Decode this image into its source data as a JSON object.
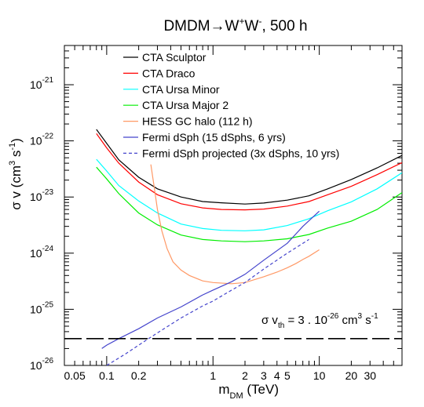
{
  "chart_data": {
    "type": "line",
    "title": "DMDM→W⁺W⁻, 500 h",
    "title_parts": {
      "prefix": "DMDM",
      "arrow": "→",
      "w1": "W",
      "sup1": "+",
      "w2": "W",
      "sup2": "-",
      "suffix": ", 500 h"
    },
    "xlabel": {
      "main": "m",
      "sub": "DM",
      "unit": " (TeV)"
    },
    "ylabel": {
      "main": "σ v (cm",
      "sup1": "3",
      "mid": " s",
      "sup2": "-1",
      "end": ")"
    },
    "x_scale": "log",
    "y_scale": "log",
    "xlim": [
      0.04,
      60
    ],
    "ylim": [
      1e-26,
      5e-21
    ],
    "x_ticks": [
      {
        "value": 0.05,
        "label": "0.05"
      },
      {
        "value": 0.1,
        "label": "0.1"
      },
      {
        "value": 0.2,
        "label": "0.2"
      },
      {
        "value": 1,
        "label": "1"
      },
      {
        "value": 2,
        "label": "2"
      },
      {
        "value": 3,
        "label": "3"
      },
      {
        "value": 4,
        "label": "4"
      },
      {
        "value": 5,
        "label": "5"
      },
      {
        "value": 10,
        "label": "10"
      },
      {
        "value": 20,
        "label": "20"
      },
      {
        "value": 30,
        "label": "30"
      }
    ],
    "y_ticks": [
      {
        "value": 1e-26,
        "base": "10",
        "exp": "-26"
      },
      {
        "value": 1e-25,
        "base": "10",
        "exp": "-25"
      },
      {
        "value": 1e-24,
        "base": "10",
        "exp": "-24"
      },
      {
        "value": 1e-23,
        "base": "10",
        "exp": "-23"
      },
      {
        "value": 1e-22,
        "base": "10",
        "exp": "-22"
      },
      {
        "value": 1e-21,
        "base": "10",
        "exp": "-21"
      }
    ],
    "legend_placement": "top-left",
    "grid": false,
    "series": [
      {
        "name": "CTA Sculptor",
        "color": "#000000",
        "dash": "solid",
        "points": [
          [
            0.08,
            1.6e-22
          ],
          [
            0.1,
            9e-23
          ],
          [
            0.13,
            4.6e-23
          ],
          [
            0.2,
            2.25e-23
          ],
          [
            0.3,
            1.4e-23
          ],
          [
            0.5,
            1e-23
          ],
          [
            0.8,
            8.3e-24
          ],
          [
            1.2,
            7.9e-24
          ],
          [
            2,
            7.5e-24
          ],
          [
            3,
            7.8e-24
          ],
          [
            5,
            8.8e-24
          ],
          [
            8,
            1.05e-23
          ],
          [
            12,
            1.4e-23
          ],
          [
            20,
            2.05e-23
          ],
          [
            35,
            3.3e-23
          ],
          [
            60,
            5.5e-23
          ]
        ]
      },
      {
        "name": "CTA Draco",
        "color": "#ff0000",
        "dash": "solid",
        "points": [
          [
            0.08,
            1.35e-22
          ],
          [
            0.1,
            7.5e-23
          ],
          [
            0.13,
            4e-23
          ],
          [
            0.2,
            1.85e-23
          ],
          [
            0.3,
            1.1e-23
          ],
          [
            0.5,
            7.6e-24
          ],
          [
            0.8,
            6.4e-24
          ],
          [
            1.2,
            6e-24
          ],
          [
            2,
            5.9e-24
          ],
          [
            3,
            6.1e-24
          ],
          [
            5,
            6.9e-24
          ],
          [
            8,
            8.3e-24
          ],
          [
            12,
            1.1e-23
          ],
          [
            20,
            1.55e-23
          ],
          [
            35,
            2.5e-23
          ],
          [
            60,
            4.1e-23
          ]
        ]
      },
      {
        "name": "CTA Ursa Minor",
        "color": "#00ffff",
        "dash": "solid",
        "points": [
          [
            0.08,
            4.7e-23
          ],
          [
            0.1,
            2.9e-23
          ],
          [
            0.13,
            1.6e-23
          ],
          [
            0.2,
            8.5e-24
          ],
          [
            0.3,
            5.2e-24
          ],
          [
            0.5,
            3.3e-24
          ],
          [
            0.8,
            2.75e-24
          ],
          [
            1.2,
            2.55e-24
          ],
          [
            2,
            2.5e-24
          ],
          [
            3,
            2.6e-24
          ],
          [
            5,
            3.1e-24
          ],
          [
            8,
            4.1e-24
          ],
          [
            12,
            5.7e-24
          ],
          [
            20,
            8.2e-24
          ],
          [
            35,
            1.4e-23
          ],
          [
            60,
            2.7e-23
          ]
        ]
      },
      {
        "name": "CTA Ursa Major 2",
        "color": "#00ee00",
        "dash": "solid",
        "points": [
          [
            0.08,
            3.4e-23
          ],
          [
            0.1,
            2.1e-23
          ],
          [
            0.13,
            1.15e-23
          ],
          [
            0.2,
            5.2e-24
          ],
          [
            0.3,
            3.2e-24
          ],
          [
            0.5,
            2.1e-24
          ],
          [
            0.8,
            1.75e-24
          ],
          [
            1.2,
            1.65e-24
          ],
          [
            2,
            1.6e-24
          ],
          [
            3,
            1.65e-24
          ],
          [
            5,
            1.8e-24
          ],
          [
            8,
            2.15e-24
          ],
          [
            12,
            2.8e-24
          ],
          [
            20,
            3.7e-24
          ],
          [
            35,
            6e-24
          ],
          [
            60,
            1.2e-23
          ]
        ]
      },
      {
        "name": "HESS GC halo (112 h)",
        "color": "#ff9966",
        "dash": "solid",
        "points": [
          [
            0.26,
            3.8e-23
          ],
          [
            0.28,
            1.5e-23
          ],
          [
            0.3,
            6e-24
          ],
          [
            0.33,
            2.5e-24
          ],
          [
            0.37,
            1.2e-24
          ],
          [
            0.42,
            7e-25
          ],
          [
            0.5,
            5e-25
          ],
          [
            0.6,
            4e-25
          ],
          [
            0.8,
            3.2e-25
          ],
          [
            1,
            3e-25
          ],
          [
            1.5,
            2.85e-25
          ],
          [
            2,
            3e-25
          ],
          [
            3,
            3.8e-25
          ],
          [
            4,
            4.6e-25
          ],
          [
            5,
            5.5e-25
          ],
          [
            6,
            6.5e-25
          ],
          [
            7,
            7.7e-25
          ],
          [
            8,
            8.8e-25
          ],
          [
            10,
            1.15e-24
          ]
        ]
      },
      {
        "name": "Fermi dSph (15 dSphs, 6 yrs)",
        "color": "#4444cc",
        "dash": "solid",
        "points": [
          [
            0.09,
            2e-26
          ],
          [
            0.1,
            2.3e-26
          ],
          [
            0.13,
            3e-26
          ],
          [
            0.2,
            4.5e-26
          ],
          [
            0.3,
            7e-26
          ],
          [
            0.5,
            1.1e-25
          ],
          [
            0.8,
            1.8e-25
          ],
          [
            1,
            2.2e-25
          ],
          [
            1.5,
            3.1e-25
          ],
          [
            2,
            4.2e-25
          ],
          [
            3,
            7.5e-25
          ],
          [
            5,
            1.5e-24
          ],
          [
            7,
            3e-24
          ],
          [
            10,
            5.6e-24
          ]
        ]
      },
      {
        "name": "Fermi dSph projected (3x dSphs, 10 yrs)",
        "color": "#4444cc",
        "dash": "dashed",
        "points": [
          [
            0.1,
            1e-26
          ],
          [
            0.15,
            1.6e-26
          ],
          [
            0.2,
            2.3e-26
          ],
          [
            0.3,
            3.8e-26
          ],
          [
            0.5,
            7e-26
          ],
          [
            0.8,
            1.15e-25
          ],
          [
            1,
            1.4e-25
          ],
          [
            1.5,
            2.2e-25
          ],
          [
            2,
            3e-25
          ],
          [
            3,
            5.2e-25
          ],
          [
            5,
            1e-24
          ],
          [
            8,
            1.75e-24
          ]
        ]
      }
    ],
    "reference_line": {
      "value": 3e-26,
      "color": "#000000",
      "dash": "long-dash"
    },
    "annotation": {
      "main": "σ v",
      "sub": "th",
      "mid": " = 3 . 10",
      "sup1": "-26",
      "unit": " cm",
      "sup2": "3",
      "s": " s",
      "sup3": "-1"
    }
  }
}
